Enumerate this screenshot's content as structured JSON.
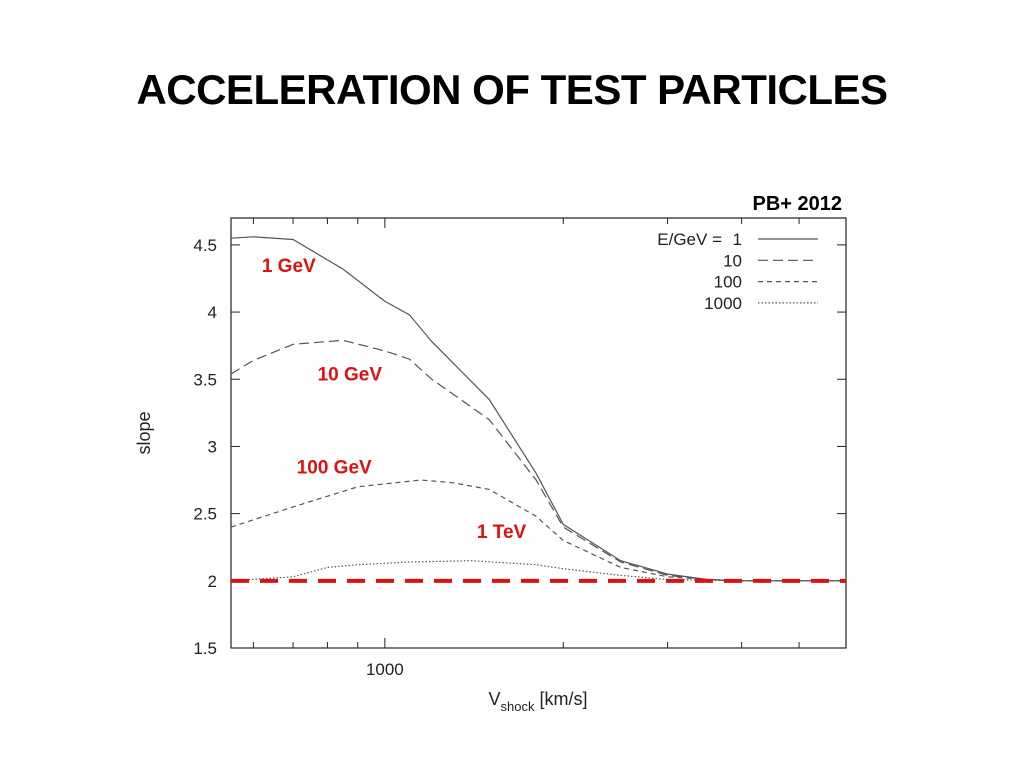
{
  "slide": {
    "title": "ACCELERATION OF TEST PARTICLES",
    "citation": "PB+ 2012"
  },
  "colors": {
    "curve": "#555555",
    "annotation": "#dd1111",
    "reference_line": "#dd1111"
  },
  "chart_data": {
    "type": "line",
    "xscale": "log",
    "xlim": [
      550,
      6000
    ],
    "ylim": [
      1.5,
      4.7
    ],
    "xlabel_main": "V",
    "xlabel_sub": "shock",
    "xlabel_unit": " [km/s]",
    "ylabel": "slope",
    "xticks_major": [
      {
        "value": 1000,
        "label": "1000"
      }
    ],
    "xticks_minor": [
      600,
      700,
      800,
      900,
      2000,
      3000,
      4000,
      5000
    ],
    "yticks": [
      {
        "value": 1.5,
        "label": "1.5"
      },
      {
        "value": 2,
        "label": "2"
      },
      {
        "value": 2.5,
        "label": "2.5"
      },
      {
        "value": 3,
        "label": "3"
      },
      {
        "value": 3.5,
        "label": "3.5"
      },
      {
        "value": 4,
        "label": "4"
      },
      {
        "value": 4.5,
        "label": "4.5"
      }
    ],
    "legend": {
      "title": "E/GeV =",
      "position": "top-right",
      "entries": [
        "1",
        "10",
        "100",
        "1000"
      ]
    },
    "series": [
      {
        "name": "1",
        "dash": "solid",
        "points": [
          [
            550,
            4.55
          ],
          [
            600,
            4.56
          ],
          [
            700,
            4.54
          ],
          [
            850,
            4.32
          ],
          [
            1000,
            4.08
          ],
          [
            1100,
            3.98
          ],
          [
            1200,
            3.78
          ],
          [
            1500,
            3.35
          ],
          [
            1800,
            2.8
          ],
          [
            2000,
            2.42
          ],
          [
            2500,
            2.15
          ],
          [
            3000,
            2.05
          ],
          [
            3500,
            2.01
          ],
          [
            4000,
            2.0
          ],
          [
            6000,
            2.0
          ]
        ]
      },
      {
        "name": "10",
        "dash": "10,5",
        "points": [
          [
            550,
            3.54
          ],
          [
            600,
            3.64
          ],
          [
            700,
            3.76
          ],
          [
            850,
            3.79
          ],
          [
            1000,
            3.71
          ],
          [
            1100,
            3.65
          ],
          [
            1200,
            3.5
          ],
          [
            1500,
            3.2
          ],
          [
            1800,
            2.75
          ],
          [
            2000,
            2.4
          ],
          [
            2500,
            2.14
          ],
          [
            3000,
            2.04
          ],
          [
            3500,
            2.01
          ],
          [
            4000,
            2.0
          ],
          [
            6000,
            2.0
          ]
        ]
      },
      {
        "name": "100",
        "dash": "5,4",
        "points": [
          [
            550,
            2.4
          ],
          [
            700,
            2.55
          ],
          [
            900,
            2.7
          ],
          [
            1150,
            2.75
          ],
          [
            1300,
            2.73
          ],
          [
            1500,
            2.68
          ],
          [
            1800,
            2.48
          ],
          [
            2000,
            2.3
          ],
          [
            2500,
            2.1
          ],
          [
            3000,
            2.03
          ],
          [
            3500,
            2.01
          ],
          [
            4000,
            2.0
          ],
          [
            6000,
            2.0
          ]
        ]
      },
      {
        "name": "1000",
        "dash": "1.5,2",
        "points": [
          [
            550,
            2.0
          ],
          [
            700,
            2.03
          ],
          [
            800,
            2.1
          ],
          [
            900,
            2.12
          ],
          [
            1100,
            2.14
          ],
          [
            1400,
            2.15
          ],
          [
            1800,
            2.12
          ],
          [
            2000,
            2.09
          ],
          [
            2500,
            2.04
          ],
          [
            3000,
            2.01
          ],
          [
            4000,
            2.0
          ],
          [
            6000,
            2.0
          ]
        ]
      }
    ],
    "annotations": [
      {
        "text": "1 GeV",
        "x": 620,
        "y": 4.3
      },
      {
        "text": "10 GeV",
        "x": 770,
        "y": 3.49
      },
      {
        "text": "100 GeV",
        "x": 710,
        "y": 2.8
      },
      {
        "text": "1 TeV",
        "x": 1430,
        "y": 2.32
      }
    ],
    "reference_line": {
      "y": 2.0,
      "style": "dashed"
    }
  }
}
